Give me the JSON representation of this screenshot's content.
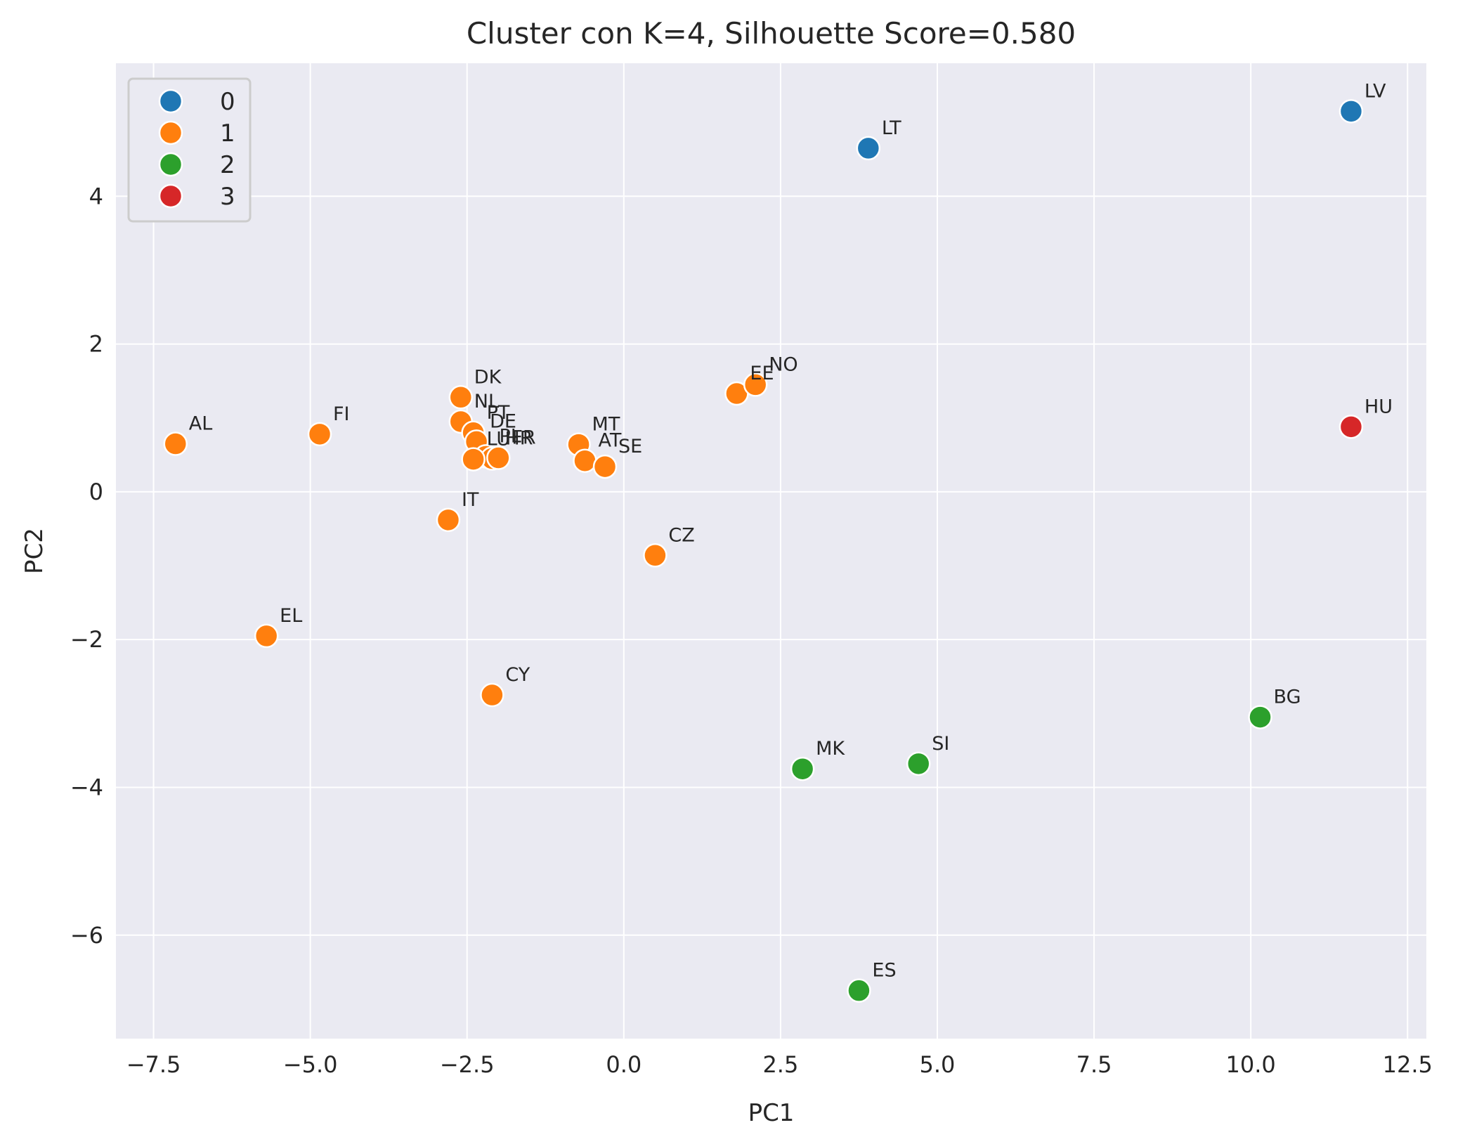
{
  "chart_data": {
    "type": "scatter",
    "title": "Cluster con K=4, Silhouette Score=0.580",
    "xlabel": "PC1",
    "ylabel": "PC2",
    "xlim": [
      -8.1,
      12.8
    ],
    "ylim": [
      -7.4,
      5.8
    ],
    "xticks": [
      -7.5,
      -5.0,
      -2.5,
      0.0,
      2.5,
      5.0,
      7.5,
      10.0,
      12.5
    ],
    "xtick_labels": [
      "−7.5",
      "−5.0",
      "−2.5",
      "0.0",
      "2.5",
      "5.0",
      "7.5",
      "10.0",
      "12.5"
    ],
    "yticks": [
      -6,
      -4,
      -2,
      0,
      2,
      4
    ],
    "ytick_labels": [
      "−6",
      "−4",
      "−2",
      "0",
      "2",
      "4"
    ],
    "grid": true,
    "legend_position": "top-left",
    "series": [
      {
        "name": "0",
        "color": "#1f77b4",
        "points": [
          {
            "label": "LT",
            "x": 3.9,
            "y": 4.65
          },
          {
            "label": "LV",
            "x": 11.6,
            "y": 5.15
          }
        ]
      },
      {
        "name": "1",
        "color": "#ff7f0e",
        "points": [
          {
            "label": "AL",
            "x": -7.15,
            "y": 0.65
          },
          {
            "label": "FI",
            "x": -4.85,
            "y": 0.78
          },
          {
            "label": "DK",
            "x": -2.6,
            "y": 1.28
          },
          {
            "label": "NL",
            "x": -2.6,
            "y": 0.95
          },
          {
            "label": "PT",
            "x": -2.4,
            "y": 0.8
          },
          {
            "label": "DE",
            "x": -2.35,
            "y": 0.68
          },
          {
            "label": "PL",
            "x": -2.2,
            "y": 0.48
          },
          {
            "label": "HR",
            "x": -2.1,
            "y": 0.45
          },
          {
            "label": "LU",
            "x": -2.4,
            "y": 0.44
          },
          {
            "label": "FR",
            "x": -2.0,
            "y": 0.46
          },
          {
            "label": "IT",
            "x": -2.8,
            "y": -0.38
          },
          {
            "label": "MT",
            "x": -0.72,
            "y": 0.64
          },
          {
            "label": "AT",
            "x": -0.62,
            "y": 0.42
          },
          {
            "label": "SE",
            "x": -0.3,
            "y": 0.34
          },
          {
            "label": "CZ",
            "x": 0.5,
            "y": -0.86
          },
          {
            "label": "EE",
            "x": 1.8,
            "y": 1.33
          },
          {
            "label": "NO",
            "x": 2.1,
            "y": 1.45
          },
          {
            "label": "EL",
            "x": -5.7,
            "y": -1.95
          },
          {
            "label": "CY",
            "x": -2.1,
            "y": -2.75
          }
        ]
      },
      {
        "name": "2",
        "color": "#2ca02c",
        "points": [
          {
            "label": "BG",
            "x": 10.15,
            "y": -3.05
          },
          {
            "label": "MK",
            "x": 2.85,
            "y": -3.75
          },
          {
            "label": "SI",
            "x": 4.7,
            "y": -3.68
          },
          {
            "label": "ES",
            "x": 3.75,
            "y": -6.75
          }
        ]
      },
      {
        "name": "3",
        "color": "#d62728",
        "points": [
          {
            "label": "HU",
            "x": 11.6,
            "y": 0.88
          }
        ]
      }
    ],
    "colors": {
      "background": "#eaeaf2",
      "grid": "#ffffff",
      "text": "#262626",
      "point_edge": "#ffffff"
    }
  }
}
